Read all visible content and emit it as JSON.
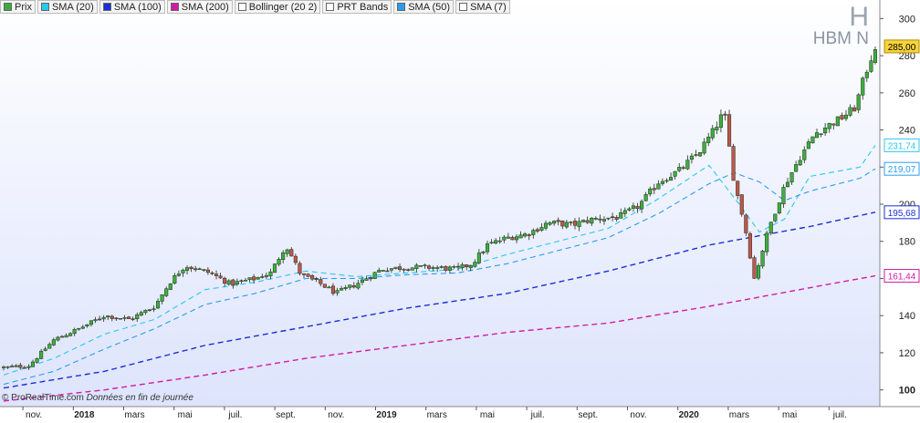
{
  "legend": [
    {
      "label": "Prix",
      "color": "#3daa3d"
    },
    {
      "label": "SMA (20)",
      "color": "#29c8f0"
    },
    {
      "label": "SMA (100)",
      "color": "#1a2fd6"
    },
    {
      "label": "SMA (200)",
      "color": "#d21aa8"
    },
    {
      "label": "Bollinger (20 2)",
      "color": "#ffffff"
    },
    {
      "label": "PRT Bands",
      "color": "#ffffff"
    },
    {
      "label": "SMA (50)",
      "color": "#2a9cf0"
    },
    {
      "label": "SMA (7)",
      "color": "#ffffff"
    }
  ],
  "brand": {
    "symbol": "H",
    "name": "HBM N"
  },
  "credit": {
    "source": "© ProRealTime.com",
    "note": "Données en fin de journée"
  },
  "colors": {
    "up": "#3fae3f",
    "down": "#c0564c",
    "sma20": "#29c8f0",
    "sma50": "#2a9cf0",
    "sma100": "#1a2fd6",
    "sma200": "#d21aa8",
    "bg_top": "#ffffff",
    "bg_bottom": "#dde4fc"
  },
  "chart_data": {
    "type": "candlestick",
    "y_ticks": [
      "100",
      "120",
      "140",
      "160",
      "180",
      "200",
      "220",
      "240",
      "260",
      "280",
      "300"
    ],
    "ylim": [
      91,
      310
    ],
    "x_labels": [
      {
        "t": 0.6,
        "label": "nov.",
        "bold": false
      },
      {
        "t": 1.6,
        "label": "2018",
        "bold": true
      },
      {
        "t": 2.6,
        "label": "mars",
        "bold": false
      },
      {
        "t": 3.6,
        "label": "mai",
        "bold": false
      },
      {
        "t": 4.6,
        "label": "juil.",
        "bold": false
      },
      {
        "t": 5.6,
        "label": "sept.",
        "bold": false
      },
      {
        "t": 6.6,
        "label": "nov.",
        "bold": false
      },
      {
        "t": 7.6,
        "label": "2019",
        "bold": true
      },
      {
        "t": 8.6,
        "label": "mars",
        "bold": false
      },
      {
        "t": 9.6,
        "label": "mai",
        "bold": false
      },
      {
        "t": 10.6,
        "label": "juil.",
        "bold": false
      },
      {
        "t": 11.6,
        "label": "sept.",
        "bold": false
      },
      {
        "t": 12.6,
        "label": "nov.",
        "bold": false
      },
      {
        "t": 13.6,
        "label": "2020",
        "bold": true
      },
      {
        "t": 14.6,
        "label": "mars",
        "bold": false
      },
      {
        "t": 15.6,
        "label": "mai",
        "bold": false
      },
      {
        "t": 16.6,
        "label": "juil.",
        "bold": false
      }
    ],
    "price_anchors": [
      [
        0,
        112
      ],
      [
        0.5,
        113
      ],
      [
        1,
        127
      ],
      [
        1.5,
        133
      ],
      [
        2,
        140
      ],
      [
        2.5,
        138
      ],
      [
        3,
        145
      ],
      [
        3.3,
        158
      ],
      [
        3.6,
        167
      ],
      [
        4.1,
        163
      ],
      [
        4.5,
        157
      ],
      [
        5,
        160
      ],
      [
        5.3,
        163
      ],
      [
        5.6,
        178
      ],
      [
        5.9,
        162
      ],
      [
        6.3,
        157
      ],
      [
        6.6,
        152
      ],
      [
        7,
        157
      ],
      [
        7.5,
        165
      ],
      [
        8,
        166
      ],
      [
        8.5,
        166
      ],
      [
        9,
        165
      ],
      [
        9.3,
        168
      ],
      [
        9.6,
        178
      ],
      [
        10,
        182
      ],
      [
        10.4,
        184
      ],
      [
        10.8,
        190
      ],
      [
        11.3,
        189
      ],
      [
        11.7,
        192
      ],
      [
        12.2,
        193
      ],
      [
        12.6,
        199
      ],
      [
        13,
        212
      ],
      [
        13.4,
        218
      ],
      [
        13.8,
        228
      ],
      [
        14.1,
        240
      ],
      [
        14.3,
        250
      ],
      [
        14.5,
        212
      ],
      [
        14.7,
        190
      ],
      [
        14.9,
        160
      ],
      [
        15.2,
        188
      ],
      [
        15.5,
        210
      ],
      [
        15.8,
        225
      ],
      [
        16.1,
        238
      ],
      [
        16.4,
        243
      ],
      [
        16.6,
        246
      ],
      [
        16.9,
        252
      ],
      [
        17.1,
        270
      ],
      [
        17.3,
        285
      ]
    ],
    "candles": 210,
    "t_range": [
      0.0,
      17.3
    ],
    "series": [
      {
        "name": "SMA (20)",
        "value_label": "231,74",
        "color": "#29c8f0",
        "anchors": [
          [
            0,
            108
          ],
          [
            1,
            117
          ],
          [
            2,
            130
          ],
          [
            3,
            138
          ],
          [
            4,
            154
          ],
          [
            5,
            158
          ],
          [
            6,
            164
          ],
          [
            7,
            161
          ],
          [
            8,
            163
          ],
          [
            9,
            165
          ],
          [
            10,
            173
          ],
          [
            11,
            180
          ],
          [
            12,
            187
          ],
          [
            13,
            203
          ],
          [
            14,
            221
          ],
          [
            14.6,
            200
          ],
          [
            15,
            185
          ],
          [
            15.5,
            192
          ],
          [
            16,
            215
          ],
          [
            17,
            220
          ],
          [
            17.3,
            231.74
          ]
        ]
      },
      {
        "name": "SMA (50)",
        "value_label": "219,07",
        "color": "#2a9cf0",
        "anchors": [
          [
            0,
            103
          ],
          [
            1,
            110
          ],
          [
            2,
            122
          ],
          [
            3,
            133
          ],
          [
            4,
            146
          ],
          [
            5,
            152
          ],
          [
            6,
            160
          ],
          [
            7,
            160
          ],
          [
            8,
            162
          ],
          [
            9,
            163
          ],
          [
            10,
            168
          ],
          [
            11,
            175
          ],
          [
            12,
            182
          ],
          [
            13,
            195
          ],
          [
            14,
            211
          ],
          [
            14.5,
            217
          ],
          [
            15,
            212
          ],
          [
            15.5,
            202
          ],
          [
            16,
            207
          ],
          [
            17,
            214
          ],
          [
            17.3,
            219.07
          ]
        ]
      },
      {
        "name": "SMA (100)",
        "value_label": "195,68",
        "color": "#1a2fd6",
        "anchors": [
          [
            0,
            101
          ],
          [
            2,
            110
          ],
          [
            4,
            124
          ],
          [
            6,
            134
          ],
          [
            8,
            144
          ],
          [
            10,
            152
          ],
          [
            12,
            164
          ],
          [
            14,
            178
          ],
          [
            15,
            183
          ],
          [
            16,
            188
          ],
          [
            17.3,
            195.68
          ]
        ]
      },
      {
        "name": "SMA (200)",
        "value_label": "161,44",
        "color": "#d21aa8",
        "anchors": [
          [
            0,
            94
          ],
          [
            2,
            100
          ],
          [
            4,
            108
          ],
          [
            6,
            117
          ],
          [
            8,
            124
          ],
          [
            10,
            131
          ],
          [
            12,
            136
          ],
          [
            14,
            145
          ],
          [
            15,
            150
          ],
          [
            16,
            155
          ],
          [
            17.3,
            161.44
          ]
        ]
      }
    ],
    "last_price_label": "285,00"
  }
}
